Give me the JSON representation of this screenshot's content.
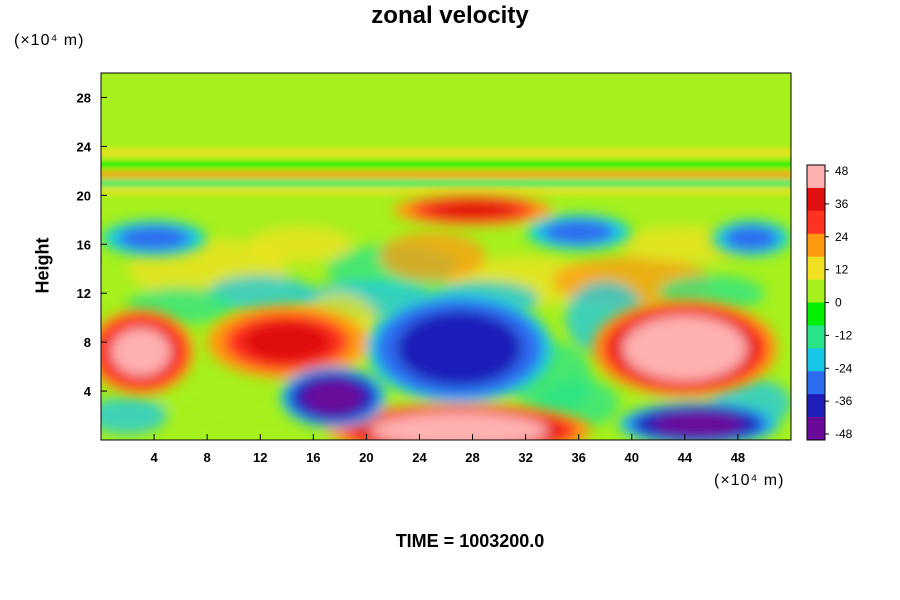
{
  "chart_data": {
    "type": "heatmap",
    "title": "zonal velocity",
    "ylabel": "Height",
    "xlabel": "",
    "x_unit": "(×10⁴ m)",
    "y_unit": "(×10⁴ m)",
    "xlim": [
      0,
      52
    ],
    "ylim": [
      0,
      30
    ],
    "x_ticks": [
      "4",
      "8",
      "12",
      "16",
      "20",
      "24",
      "28",
      "32",
      "36",
      "40",
      "44",
      "48"
    ],
    "y_ticks": [
      "4",
      "8",
      "12",
      "16",
      "20",
      "24",
      "28"
    ],
    "colorbar": {
      "range": [
        -48,
        48
      ],
      "ticks": [
        "48",
        "36",
        "24",
        "12",
        "0",
        "-12",
        "-24",
        "-36",
        "-48"
      ],
      "colormap": [
        "#6a0a9a",
        "#1f1fb8",
        "#2e6cf0",
        "#18c7e8",
        "#27e38a",
        "#00f000",
        "#a6f01d",
        "#f0e020",
        "#ff9a10",
        "#ff3322",
        "#e01010",
        "#ffb0b0"
      ]
    },
    "features": [
      {
        "x": 27,
        "y": 0.8,
        "value": 48
      },
      {
        "x": 44,
        "y": 7.5,
        "value": 48
      },
      {
        "x": 3,
        "y": 7.2,
        "value": 40
      },
      {
        "x": 14,
        "y": 8,
        "value": 36
      },
      {
        "x": 28,
        "y": 18.8,
        "value": 36
      },
      {
        "x": 27,
        "y": 7.5,
        "value": -40
      },
      {
        "x": 17.5,
        "y": 3.5,
        "value": -44
      },
      {
        "x": 45,
        "y": 1.3,
        "value": -44
      },
      {
        "x": 4,
        "y": 16.5,
        "value": -30
      },
      {
        "x": 36,
        "y": 17,
        "value": -30
      },
      {
        "x": 49,
        "y": 16.5,
        "value": -30
      }
    ]
  },
  "footer": "TIME = 1003200.0"
}
